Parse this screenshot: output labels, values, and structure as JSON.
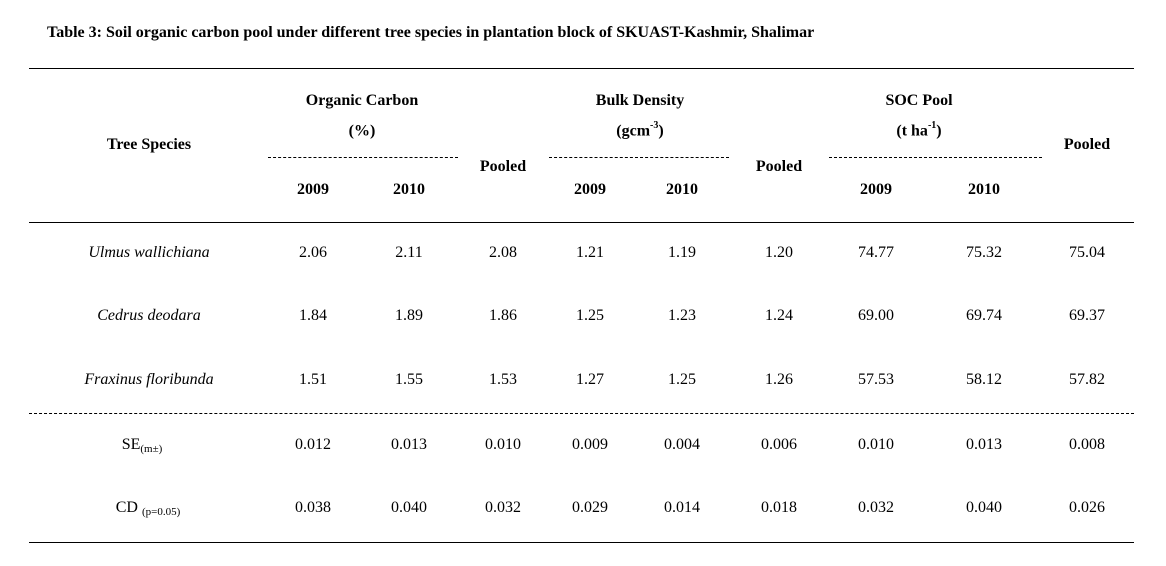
{
  "title": "Table 3: Soil organic carbon pool under different tree species in plantation block of SKUAST-Kashmir, Shalimar",
  "header": {
    "species": "Tree Species",
    "groups": [
      {
        "line1": "Organic Carbon",
        "unit_pre": "(%)",
        "unit_sup": "",
        "unit_post": ""
      },
      {
        "line1": "Bulk Density",
        "unit_pre": "(gcm",
        "unit_sup": "-3",
        "unit_post": ")"
      },
      {
        "line1": "SOC Pool",
        "unit_pre": "(t ha",
        "unit_sup": "-1",
        "unit_post": ")"
      }
    ],
    "year1": "2009",
    "year2": "2010",
    "pooled": "Pooled"
  },
  "rows": [
    {
      "species": "Ulmus wallichiana",
      "values": [
        "2.06",
        "2.11",
        "2.08",
        "1.21",
        "1.19",
        "1.20",
        "74.77",
        "75.32",
        "75.04"
      ]
    },
    {
      "species": "Cedrus deodara",
      "values": [
        "1.84",
        "1.89",
        "1.86",
        "1.25",
        "1.23",
        "1.24",
        "69.00",
        "69.74",
        "69.37"
      ]
    },
    {
      "species": "Fraxinus floribunda",
      "values": [
        "1.51",
        "1.55",
        "1.53",
        "1.27",
        "1.25",
        "1.26",
        "57.53",
        "58.12",
        "57.82"
      ]
    }
  ],
  "stats": [
    {
      "label": "SE",
      "sub": "(m±)",
      "values": [
        "0.012",
        "0.013",
        "0.010",
        "0.009",
        "0.004",
        "0.006",
        "0.010",
        "0.013",
        "0.008"
      ]
    },
    {
      "label": "CD ",
      "sub": "(p=0.05)",
      "values": [
        "0.038",
        "0.040",
        "0.032",
        "0.029",
        "0.014",
        "0.018",
        "0.032",
        "0.040",
        "0.026"
      ]
    }
  ]
}
